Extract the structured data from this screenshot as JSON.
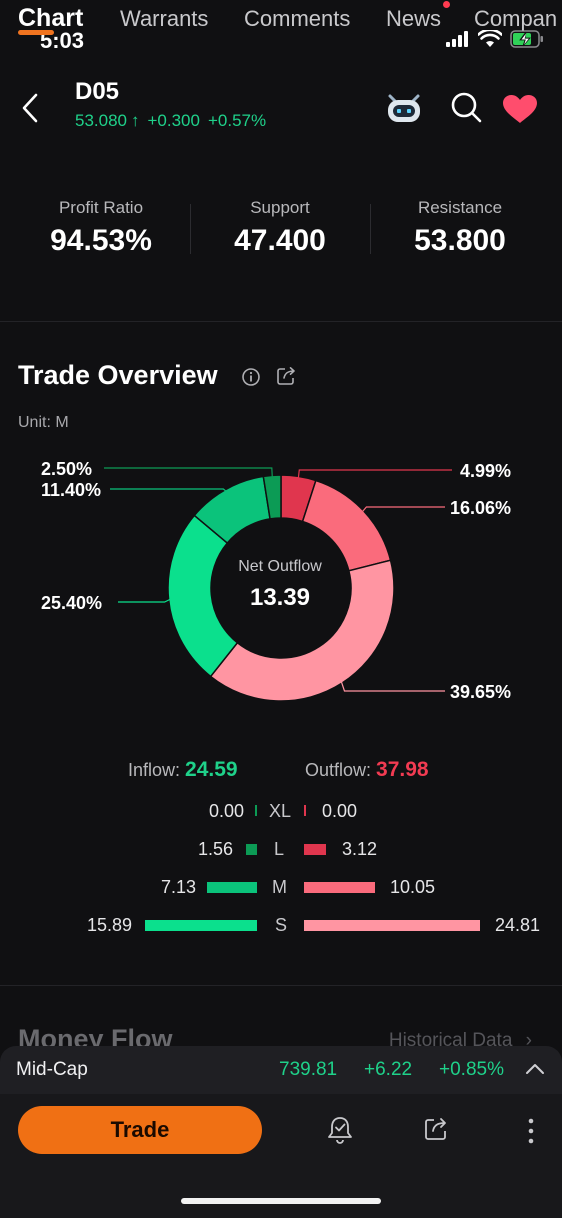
{
  "status": {
    "time": "5:03"
  },
  "header": {
    "ticker": "D05",
    "price": "53.080",
    "arrow": "↑",
    "change": "+0.300",
    "change_pct": "+0.57%"
  },
  "tabs": [
    "Chart",
    "Warrants",
    "Comments",
    "News",
    "Compan"
  ],
  "stats": [
    {
      "label": "Profit Ratio",
      "value": "94.53%"
    },
    {
      "label": "Support",
      "value": "47.400"
    },
    {
      "label": "Resistance",
      "value": "53.800"
    }
  ],
  "trade_overview": {
    "title": "Trade Overview",
    "unit": "Unit: M",
    "center_label": "Net Outflow",
    "center_value": "13.39",
    "inflow_label": "Inflow:",
    "inflow_value": "24.59",
    "outflow_label": "Outflow:",
    "outflow_value": "37.98",
    "rows": [
      {
        "size": "XL",
        "in": "0.00",
        "out": "0.00"
      },
      {
        "size": "L",
        "in": "1.56",
        "out": "3.12"
      },
      {
        "size": "M",
        "in": "7.13",
        "out": "10.05"
      },
      {
        "size": "S",
        "in": "15.89",
        "out": "24.81"
      }
    ]
  },
  "chart_data": {
    "type": "pie",
    "center_label": "Net Outflow",
    "center_value": 13.39,
    "slices": [
      {
        "label": "4.99%",
        "value": 4.99,
        "color": "#e0364e"
      },
      {
        "label": "16.06%",
        "value": 16.06,
        "color": "#fa6b7c"
      },
      {
        "label": "39.65%",
        "value": 39.65,
        "color": "#ff95a2"
      },
      {
        "label": "25.40%",
        "value": 25.4,
        "color": "#0be08d"
      },
      {
        "label": "11.40%",
        "value": 11.4,
        "color": "#0bc37b"
      },
      {
        "label": "2.50%",
        "value": 2.5,
        "color": "#0c9b55"
      }
    ]
  },
  "money_flow": {
    "title": "Money Flow",
    "history_label": "Historical Data"
  },
  "index_bar": {
    "name": "Mid-Cap",
    "value": "739.81",
    "change": "+6.22",
    "change_pct": "+0.85%"
  },
  "toolbar": {
    "trade_label": "Trade"
  },
  "colors": {
    "inflow": "#1fd18a",
    "outflow": "#f23b52",
    "accent": "#f07014"
  }
}
